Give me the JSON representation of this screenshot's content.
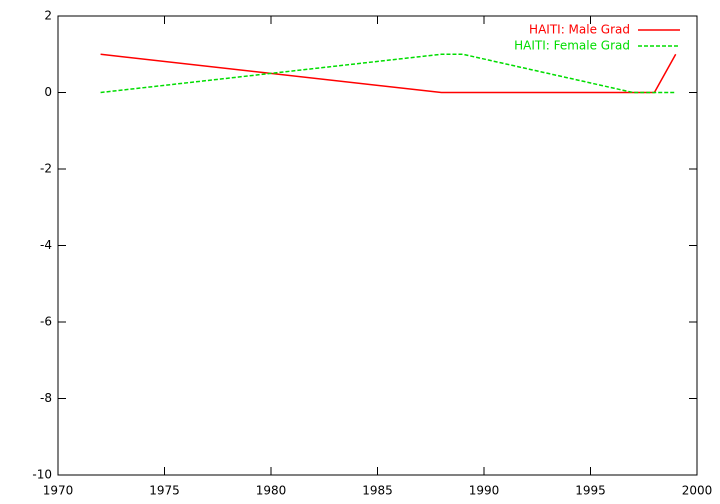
{
  "chart_data": {
    "type": "line",
    "series": [
      {
        "name": "HAITI: Male Grad",
        "color": "#ff0000",
        "dash": false,
        "x": [
          1972,
          1988,
          1998,
          1999
        ],
        "values": [
          1,
          0,
          0,
          1
        ]
      },
      {
        "name": "HAITI: Female Grad",
        "color": "#00dd00",
        "dash": true,
        "x": [
          1972,
          1988,
          1989,
          1997,
          1999
        ],
        "values": [
          0,
          1,
          1,
          0,
          0
        ]
      }
    ],
    "xlim": [
      1970,
      2000
    ],
    "xticks": [
      1970,
      1975,
      1980,
      1985,
      1990,
      1995,
      2000
    ],
    "ylim": [
      -10,
      2
    ],
    "yticks": [
      -10,
      -8,
      -6,
      -4,
      -2,
      0,
      2
    ],
    "legend": "top-right"
  }
}
